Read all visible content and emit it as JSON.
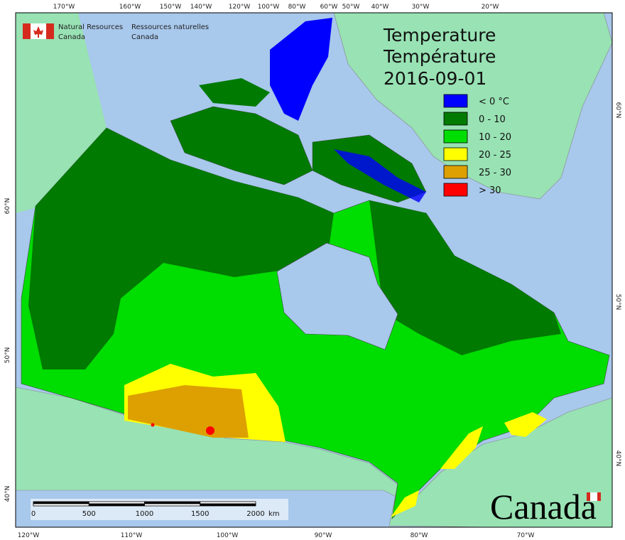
{
  "header": {
    "agency_en": "Natural Resources",
    "country_en": "Canada",
    "agency_fr": "Ressources naturelles",
    "country_fr": "Canada"
  },
  "title": {
    "en": "Temperature",
    "fr": "Température",
    "date": "2016-09-01"
  },
  "legend": [
    {
      "label": "< 0 °C",
      "color": "#0000ff"
    },
    {
      "label": "0 - 10",
      "color": "#007a00"
    },
    {
      "label": "10 - 20",
      "color": "#00dd00"
    },
    {
      "label": "20 - 25",
      "color": "#ffff00"
    },
    {
      "label": "25 - 30",
      "color": "#dda000"
    },
    {
      "label": "> 30",
      "color": "#ff0000"
    }
  ],
  "graticule": {
    "top": [
      "170°W",
      "160°W",
      "150°W",
      "140°W",
      "120°W",
      "100°W",
      "80°W",
      "60°W",
      "50°W",
      "40°W",
      "30°W",
      "20°W"
    ],
    "left": [
      "60°N",
      "50°N",
      "40°N"
    ],
    "right": [
      "60°N",
      "50°N",
      "40°N"
    ],
    "bottom": [
      "120°W",
      "110°W",
      "100°W",
      "90°W",
      "80°W",
      "70°W"
    ]
  },
  "scale_bar": {
    "ticks": [
      "0",
      "500",
      "1000",
      "1500",
      "2000"
    ],
    "unit": "km"
  },
  "wordmark": "Canada"
}
